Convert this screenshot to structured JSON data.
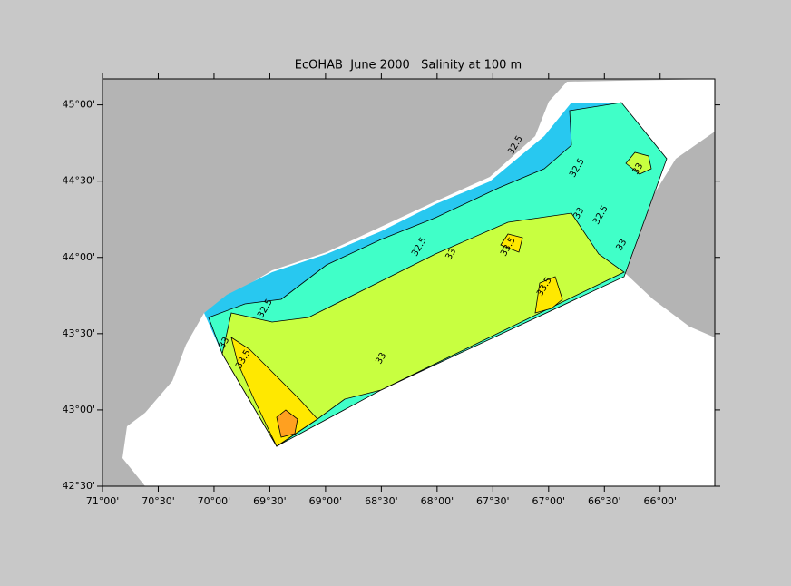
{
  "chart_data": {
    "type": "contour",
    "title": "EcOHAB  June 2000   Salinity at 100 m",
    "xlim": [
      -71,
      -65.51
    ],
    "ylim": [
      42.5,
      45.17
    ],
    "xticks": [
      {
        "value": -71,
        "label": "71°00'"
      },
      {
        "value": -70.5,
        "label": "70°30'"
      },
      {
        "value": -70,
        "label": "70°00'"
      },
      {
        "value": -69.5,
        "label": "69°30'"
      },
      {
        "value": -69,
        "label": "69°00'"
      },
      {
        "value": -68.5,
        "label": "68°30'"
      },
      {
        "value": -68,
        "label": "68°00'"
      },
      {
        "value": -67.5,
        "label": "67°30'"
      },
      {
        "value": -67,
        "label": "67°00'"
      },
      {
        "value": -66.5,
        "label": "66°30'"
      },
      {
        "value": -66,
        "label": "66°00'"
      }
    ],
    "yticks": [
      {
        "value": 45,
        "label": "45°00'"
      },
      {
        "value": 44.5,
        "label": "44°30'"
      },
      {
        "value": 44,
        "label": "44°00'"
      },
      {
        "value": 43.5,
        "label": "43°30'"
      },
      {
        "value": 43,
        "label": "43°00'"
      },
      {
        "value": 42.5,
        "label": "42°30'"
      }
    ],
    "levels": [
      32.5,
      33,
      33.5,
      34
    ],
    "colors": [
      "#28c8f0",
      "#40ffc8",
      "#c8ff40",
      "#ffe800",
      "#ffa020"
    ],
    "land_color": "#b4b4b4",
    "contour_labels": [
      33,
      33.5,
      32.5,
      32.5,
      33,
      33,
      33.5,
      33.5,
      33,
      32.5,
      33,
      32.5,
      32.5,
      33
    ]
  }
}
